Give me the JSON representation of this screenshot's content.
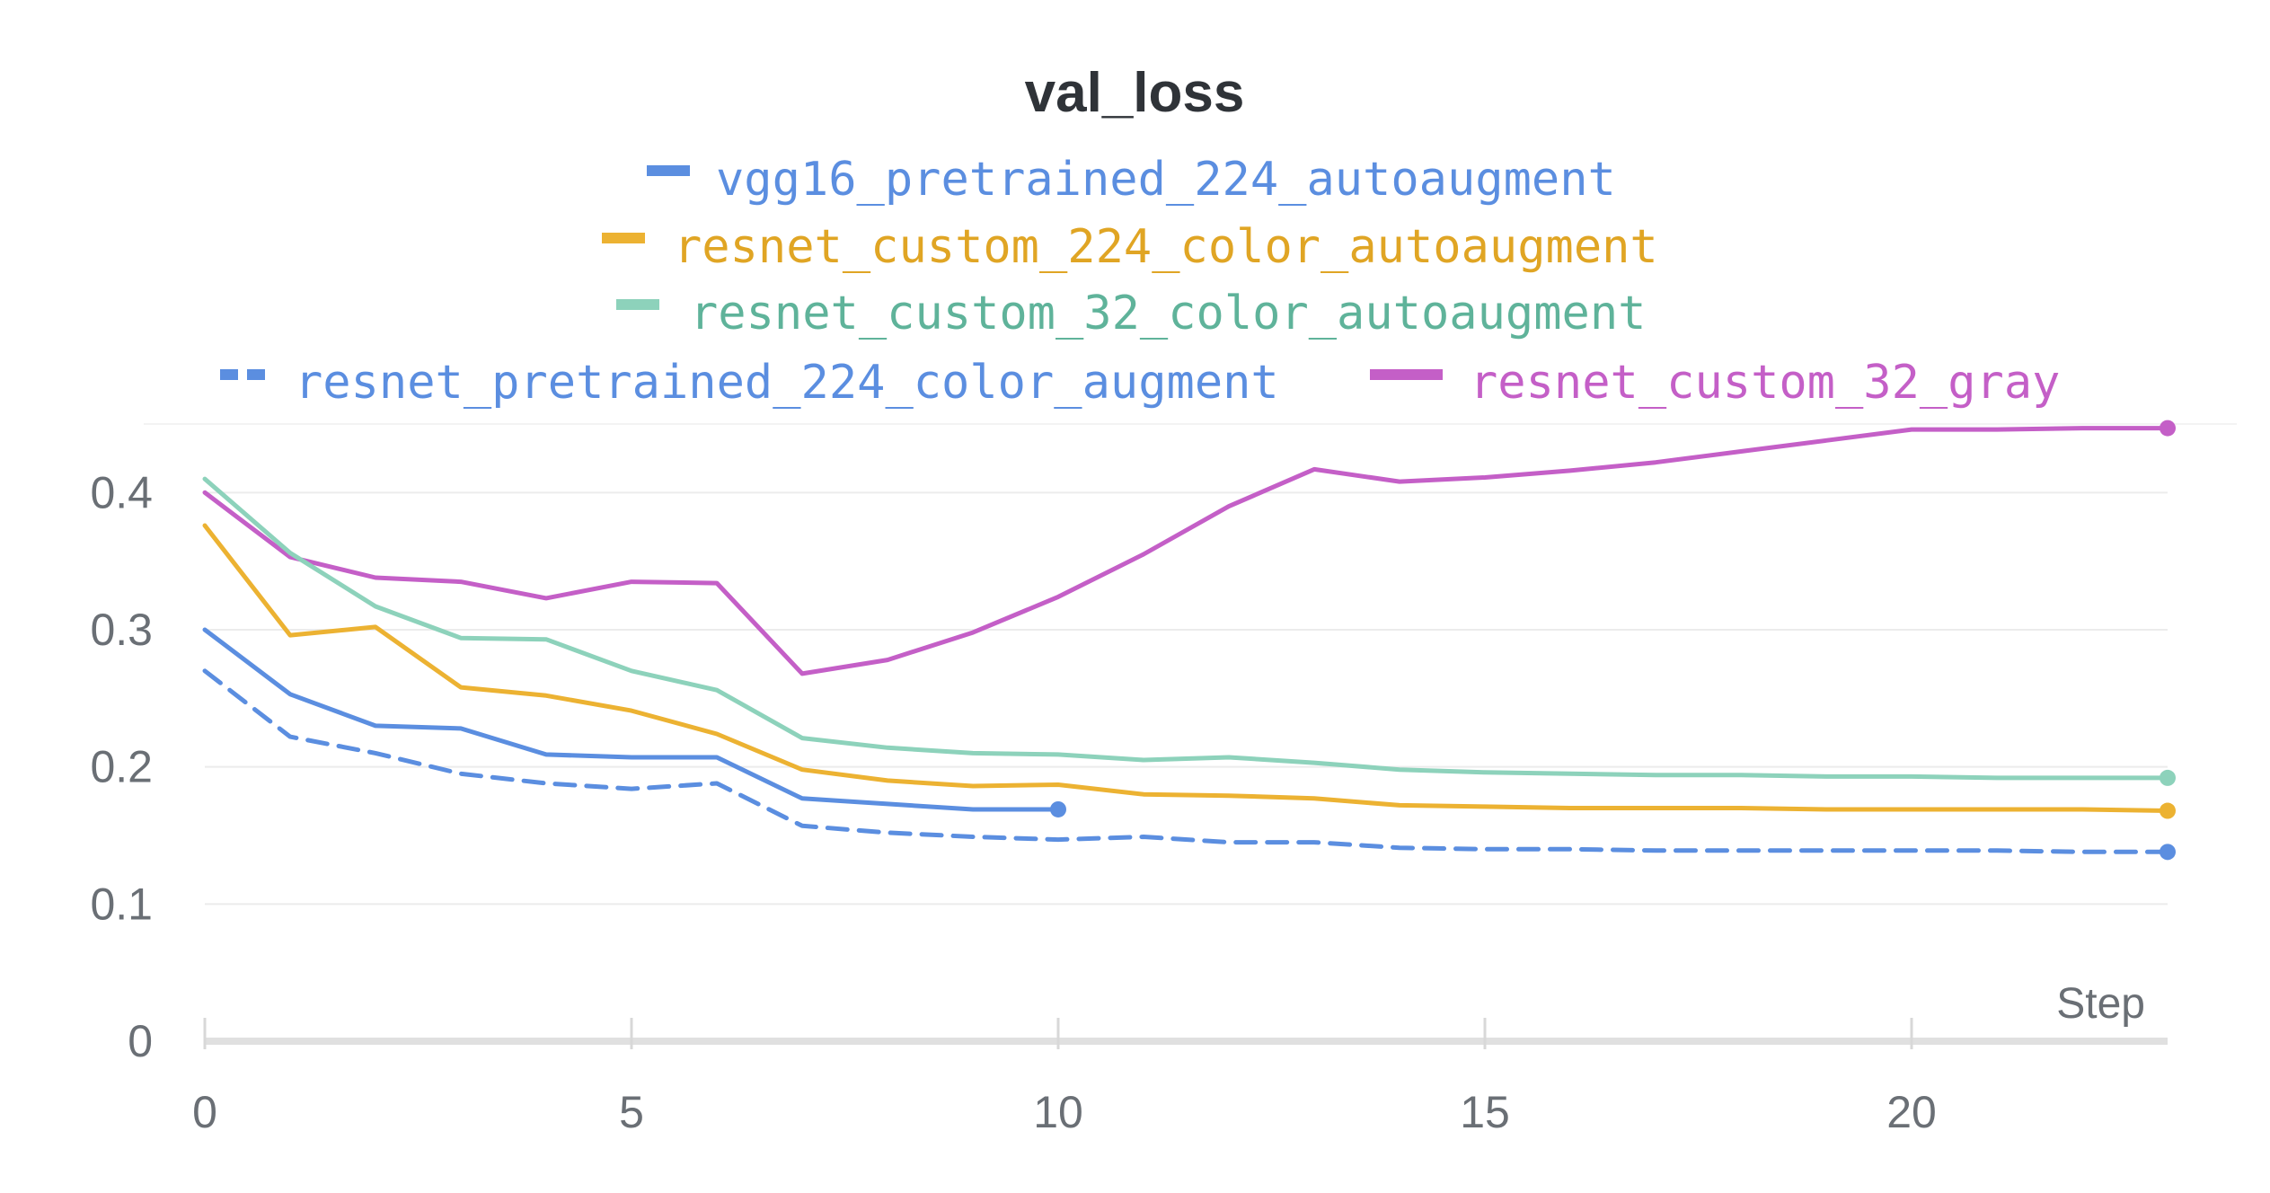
{
  "chart_data": {
    "type": "line",
    "title": "val_loss",
    "xlabel": "Step",
    "ylabel": "",
    "xlim": [
      0,
      23
    ],
    "ylim": [
      0,
      0.45
    ],
    "x_ticks": [
      "0",
      "5",
      "10",
      "15",
      "20"
    ],
    "y_ticks": [
      "0",
      "0.1",
      "0.2",
      "0.3",
      "0.4"
    ],
    "grid": "horizontal",
    "legend_position": "top",
    "series": [
      {
        "name": "vgg16_pretrained_224_autoaugment",
        "color": "#5b8ee0",
        "dashed": false,
        "x": [
          0,
          1,
          2,
          3,
          4,
          5,
          6,
          7,
          8,
          9,
          10
        ],
        "y": [
          0.3,
          0.253,
          0.23,
          0.228,
          0.209,
          0.207,
          0.207,
          0.177,
          0.173,
          0.169,
          0.169
        ]
      },
      {
        "name": "resnet_custom_224_color_autoaugment",
        "color": "#ecb232",
        "dashed": false,
        "x": [
          0,
          1,
          2,
          3,
          4,
          5,
          6,
          7,
          8,
          9,
          10,
          11,
          12,
          13,
          14,
          15,
          16,
          17,
          18,
          19,
          20,
          21,
          22,
          23
        ],
        "y": [
          0.376,
          0.296,
          0.302,
          0.258,
          0.252,
          0.241,
          0.224,
          0.198,
          0.19,
          0.186,
          0.187,
          0.18,
          0.179,
          0.177,
          0.172,
          0.171,
          0.17,
          0.17,
          0.17,
          0.169,
          0.169,
          0.169,
          0.169,
          0.168
        ]
      },
      {
        "name": "resnet_custom_32_color_autoaugment",
        "color": "#8dd2bb",
        "dashed": false,
        "x": [
          0,
          1,
          2,
          3,
          4,
          5,
          6,
          7,
          8,
          9,
          10,
          11,
          12,
          13,
          14,
          15,
          16,
          17,
          18,
          19,
          20,
          21,
          22,
          23
        ],
        "y": [
          0.41,
          0.356,
          0.317,
          0.294,
          0.293,
          0.27,
          0.256,
          0.221,
          0.214,
          0.21,
          0.209,
          0.205,
          0.207,
          0.203,
          0.198,
          0.196,
          0.195,
          0.194,
          0.194,
          0.193,
          0.193,
          0.192,
          0.192,
          0.192
        ]
      },
      {
        "name": "resnet_pretrained_224_color_augment",
        "color": "#5b8ee0",
        "dashed": true,
        "x": [
          0,
          1,
          2,
          3,
          4,
          5,
          6,
          7,
          8,
          9,
          10,
          11,
          12,
          13,
          14,
          15,
          16,
          17,
          18,
          19,
          20,
          21,
          22,
          23
        ],
        "y": [
          0.27,
          0.222,
          0.21,
          0.195,
          0.188,
          0.184,
          0.188,
          0.157,
          0.152,
          0.149,
          0.147,
          0.149,
          0.145,
          0.145,
          0.141,
          0.14,
          0.14,
          0.139,
          0.139,
          0.139,
          0.139,
          0.139,
          0.138,
          0.138
        ]
      },
      {
        "name": "resnet_custom_32_gray",
        "color": "#c45fc7",
        "dashed": false,
        "x": [
          0,
          1,
          2,
          3,
          4,
          5,
          6,
          7,
          8,
          9,
          10,
          11,
          12,
          13,
          14,
          15,
          16,
          17,
          18,
          19,
          20,
          21,
          22,
          23
        ],
        "y": [
          0.4,
          0.353,
          0.338,
          0.335,
          0.323,
          0.335,
          0.334,
          0.268,
          0.278,
          0.298,
          0.324,
          0.355,
          0.39,
          0.417,
          0.408,
          0.411,
          0.416,
          0.422,
          0.43,
          0.438,
          0.446,
          0.446,
          0.447,
          0.447
        ]
      }
    ]
  }
}
